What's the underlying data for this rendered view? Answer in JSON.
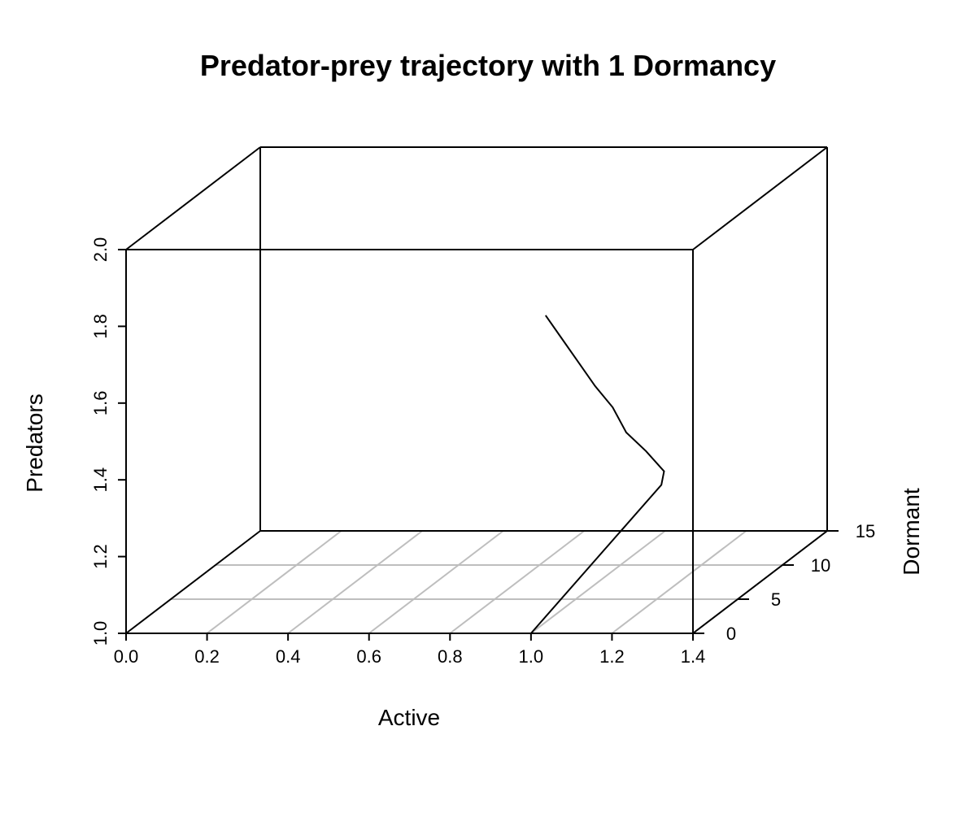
{
  "chart_data": {
    "type": "line",
    "projection": "3d-scatter",
    "title": "Predator-prey trajectory with 1 Dormancy",
    "xlabel": "Active",
    "ylabel": "Dormant",
    "zlabel": "Predators",
    "xlim": [
      0,
      1.4
    ],
    "ylim": [
      0,
      15
    ],
    "zlim": [
      1.0,
      2.0
    ],
    "x_ticks": [
      "0.0",
      "0.2",
      "0.4",
      "0.6",
      "0.8",
      "1.0",
      "1.2",
      "1.4"
    ],
    "y_ticks": [
      "0",
      "5",
      "10",
      "15"
    ],
    "z_ticks": [
      "1.0",
      "1.2",
      "1.4",
      "1.6",
      "1.8",
      "2.0"
    ],
    "grid": true,
    "box": true,
    "series": [
      {
        "points": [
          {
            "x": 1.0,
            "y": 0.0,
            "z": 1.0
          },
          {
            "x": 1.09,
            "y": 10.5,
            "z": 1.2
          },
          {
            "x": 1.09,
            "y": 10.8,
            "z": 1.23
          },
          {
            "x": 1.03,
            "y": 11.5,
            "z": 1.27
          },
          {
            "x": 0.97,
            "y": 12.0,
            "z": 1.31
          },
          {
            "x": 0.93,
            "y": 12.3,
            "z": 1.37
          },
          {
            "x": 0.88,
            "y": 12.6,
            "z": 1.42
          },
          {
            "x": 0.83,
            "y": 12.9,
            "z": 1.48
          },
          {
            "x": 0.78,
            "y": 13.2,
            "z": 1.54
          },
          {
            "x": 0.74,
            "y": 13.4,
            "z": 1.59
          }
        ]
      }
    ]
  }
}
